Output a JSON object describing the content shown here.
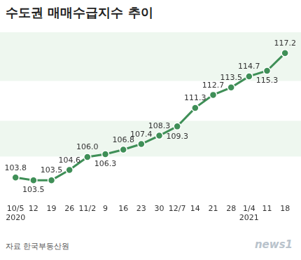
{
  "chart_data": {
    "type": "line",
    "title": "수도권 매매수급지수 추이",
    "categories": [
      "10/5",
      "12",
      "19",
      "26",
      "11/2",
      "9",
      "16",
      "23",
      "30",
      "12/7",
      "14",
      "21",
      "28",
      "1/4",
      "11",
      "18"
    ],
    "values": [
      103.8,
      103.5,
      103.5,
      104.6,
      106.0,
      106.3,
      106.8,
      107.4,
      108.3,
      109.3,
      111.3,
      112.7,
      113.5,
      114.7,
      115.3,
      117.2
    ],
    "value_labels": [
      "103.8",
      "103.5",
      "103.5",
      "104.6",
      "106.0",
      "106.3",
      "106.8",
      "107.4",
      "108.3",
      "109.3",
      "111.3",
      "112.7",
      "113.5",
      "114.7",
      "115.3",
      "117.2"
    ],
    "color": "#3f8f57",
    "marker": "circle",
    "line_style": "solid",
    "ylim": [
      101.5,
      119
    ],
    "grid": false,
    "data_labels": true,
    "tick_labels": "x",
    "annotations": [
      {
        "text": "2020",
        "at": "10/5"
      },
      {
        "text": "2021",
        "at": "1/4"
      }
    ],
    "source": "자료  한국부동산원",
    "credit": "news1"
  }
}
